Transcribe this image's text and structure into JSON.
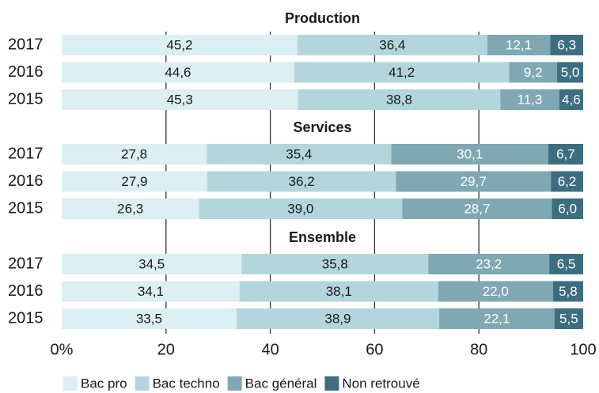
{
  "chart_data": {
    "type": "bar",
    "orientation": "horizontal",
    "stacked": true,
    "grid": true,
    "xlim": [
      0,
      100
    ],
    "xticks": [
      {
        "value": 0,
        "label": "0%"
      },
      20,
      40,
      60,
      80,
      100
    ],
    "series": [
      {
        "name": "Bac pro",
        "color": "#dcefF3",
        "label_color": "#1a1a1a"
      },
      {
        "name": "Bac techno",
        "color": "#b3d6dc",
        "label_color": "#1a1a1a"
      },
      {
        "name": "Bac général",
        "color": "#7fa8b2",
        "label_color": "#ffffff"
      },
      {
        "name": "Non retrouvé",
        "color": "#3d6e80",
        "label_color": "#ffffff"
      }
    ],
    "panels": [
      {
        "title": "Production",
        "categories": [
          "2017",
          "2016",
          "2015"
        ],
        "values": [
          [
            45.2,
            44.6,
            45.3
          ],
          [
            36.4,
            41.2,
            38.8
          ],
          [
            12.1,
            9.2,
            11.3
          ],
          [
            6.3,
            5.0,
            4.6
          ]
        ],
        "value_labels": [
          [
            "45,2",
            "44,6",
            "45,3"
          ],
          [
            "36,4",
            "41,2",
            "38,8"
          ],
          [
            "12,1",
            "9,2",
            "11,3"
          ],
          [
            "6,3",
            "5,0",
            "4,6"
          ]
        ]
      },
      {
        "title": "Services",
        "categories": [
          "2017",
          "2016",
          "2015"
        ],
        "values": [
          [
            27.8,
            27.9,
            26.3
          ],
          [
            35.4,
            36.2,
            39.0
          ],
          [
            30.1,
            29.7,
            28.7
          ],
          [
            6.7,
            6.2,
            6.0
          ]
        ],
        "value_labels": [
          [
            "27,8",
            "27,9",
            "26,3"
          ],
          [
            "35,4",
            "36,2",
            "39,0"
          ],
          [
            "30,1",
            "29,7",
            "28,7"
          ],
          [
            "6,7",
            "6,2",
            "6,0"
          ]
        ]
      },
      {
        "title": "Ensemble",
        "categories": [
          "2017",
          "2016",
          "2015"
        ],
        "values": [
          [
            34.5,
            34.1,
            33.5
          ],
          [
            35.8,
            38.1,
            38.9
          ],
          [
            23.2,
            22.0,
            22.1
          ],
          [
            6.5,
            5.8,
            5.5
          ]
        ],
        "value_labels": [
          [
            "34,5",
            "34,1",
            "33,5"
          ],
          [
            "35,8",
            "38,1",
            "38,9"
          ],
          [
            "23,2",
            "22,0",
            "22,1"
          ],
          [
            "6,5",
            "5,8",
            "5,5"
          ]
        ]
      }
    ]
  }
}
